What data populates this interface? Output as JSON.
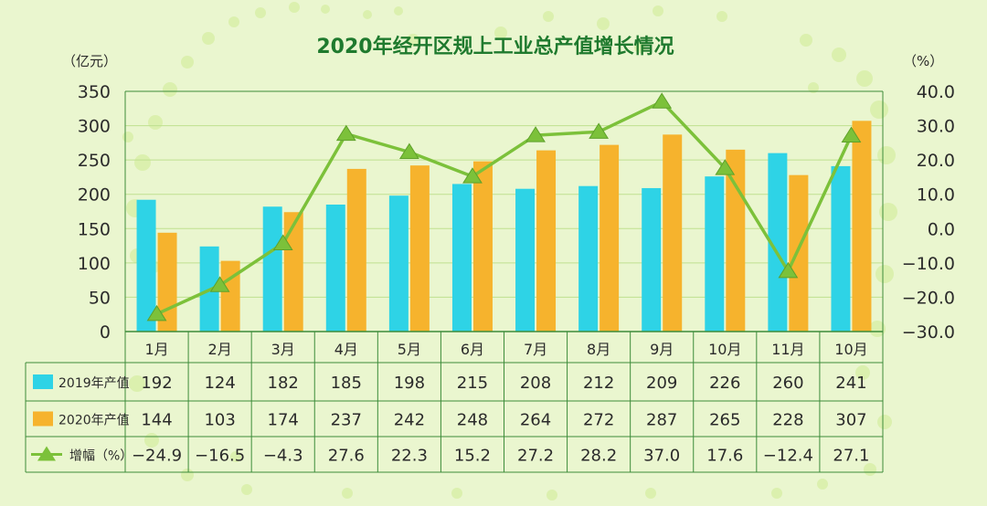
{
  "chart_data": {
    "type": "bar",
    "title": "2020年经开区规上工业总产值增长情况",
    "left_unit": "（亿元）",
    "right_unit": "（%）",
    "categories": [
      "1月",
      "2月",
      "3月",
      "4月",
      "5月",
      "6月",
      "7月",
      "8月",
      "9月",
      "10月",
      "11月",
      "10月"
    ],
    "series": [
      {
        "name": "2019年产值",
        "type": "bar",
        "axis": "left",
        "color": "#2ed3e6",
        "values": [
          192,
          124,
          182,
          185,
          198,
          215,
          208,
          212,
          209,
          226,
          260,
          241
        ]
      },
      {
        "name": "2020年产值",
        "type": "bar",
        "axis": "left",
        "color": "#f6b32d",
        "values": [
          144,
          103,
          174,
          237,
          242,
          248,
          264,
          272,
          287,
          265,
          228,
          307
        ]
      },
      {
        "name": "增幅（%）",
        "type": "line",
        "axis": "right",
        "color": "#7cc13a",
        "values": [
          -24.9,
          -16.5,
          -4.3,
          27.6,
          22.3,
          15.2,
          27.2,
          28.2,
          37.0,
          17.6,
          -12.4,
          27.1
        ]
      }
    ],
    "table_values": {
      "2019年产值": [
        "192",
        "124",
        "182",
        "185",
        "198",
        "215",
        "208",
        "212",
        "209",
        "226",
        "260",
        "241"
      ],
      "2020年产值": [
        "144",
        "103",
        "174",
        "237",
        "242",
        "248",
        "264",
        "272",
        "287",
        "265",
        "228",
        "307"
      ],
      "增幅（%）": [
        "−24.9",
        "−16.5",
        "−4.3",
        "27.6",
        "22.3",
        "15.2",
        "27.2",
        "28.2",
        "37.0",
        "17.6",
        "−12.4",
        "27.1"
      ]
    },
    "left_ticks": [
      "0",
      "50",
      "100",
      "150",
      "200",
      "250",
      "300",
      "350"
    ],
    "right_ticks": [
      "−30.0",
      "−20.0",
      "−10.0",
      "0.0",
      "10.0",
      "20.0",
      "30.0",
      "40.0"
    ],
    "ylim_left": [
      0,
      350
    ],
    "ylim_right": [
      -30,
      40
    ],
    "grid": true,
    "legend": "in-table"
  }
}
